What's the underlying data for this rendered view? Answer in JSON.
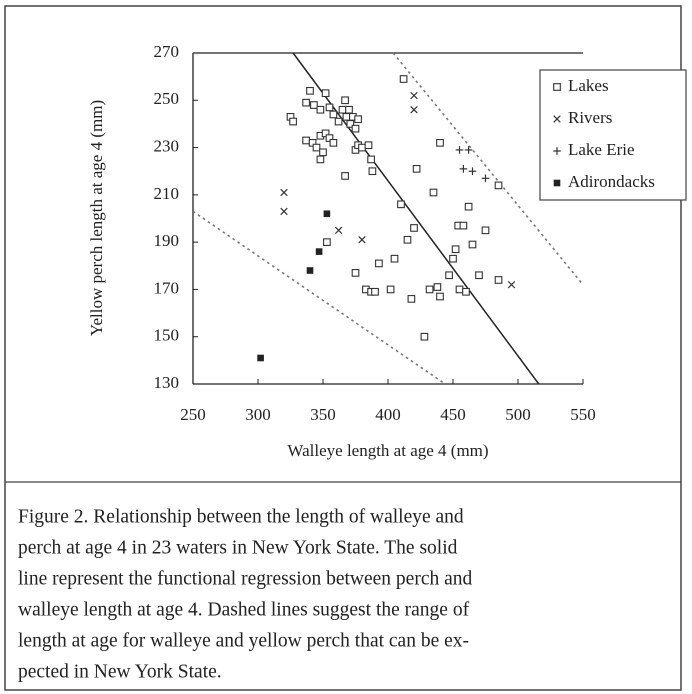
{
  "chart_data": {
    "type": "scatter",
    "xlabel": "Walleye length at age 4 (mm)",
    "ylabel": "Yellow perch length at age 4 (mm)",
    "xlim": [
      250,
      550
    ],
    "xticks": [
      250,
      300,
      350,
      400,
      450,
      500,
      550
    ],
    "ylim": [
      130,
      270
    ],
    "yticks": [
      130,
      150,
      170,
      190,
      210,
      230,
      250,
      270
    ],
    "legend": "upper right",
    "series": [
      {
        "name": "Lakes",
        "marker": "open-square",
        "color": "#333",
        "x": [
          325,
          327,
          337,
          340,
          343,
          348,
          352,
          355,
          358,
          362,
          365,
          367,
          368,
          371,
          373,
          375,
          377,
          370,
          337,
          342,
          345,
          348,
          350,
          352,
          355,
          348,
          358,
          375,
          377,
          380,
          385,
          387,
          388,
          367,
          410,
          420,
          415,
          405,
          393,
          375,
          383,
          387,
          390,
          402,
          418,
          432,
          440,
          438,
          447,
          450,
          452,
          454,
          458,
          462,
          465,
          470,
          455,
          460,
          475,
          485,
          485,
          435,
          422,
          440,
          412,
          428,
          353
        ],
        "y": [
          243,
          241,
          249,
          254,
          248,
          246,
          253,
          247,
          244,
          241,
          246,
          250,
          243,
          240,
          243,
          238,
          242,
          246,
          233,
          232,
          230,
          235,
          228,
          236,
          234,
          225,
          232,
          229,
          231,
          230,
          231,
          225,
          220,
          218,
          206,
          196,
          191,
          183,
          181,
          177,
          170,
          169,
          169,
          170,
          166,
          170,
          167,
          171,
          176,
          183,
          187,
          197,
          197,
          205,
          189,
          176,
          170,
          169,
          195,
          214,
          174,
          211,
          221,
          232,
          259,
          150,
          190
        ]
      },
      {
        "name": "Rivers",
        "marker": "x",
        "color": "#333",
        "x": [
          320,
          320,
          362,
          380,
          420,
          420,
          495
        ],
        "y": [
          211,
          203,
          195,
          191,
          252,
          246,
          172
        ]
      },
      {
        "name": "Lake Erie",
        "marker": "plus",
        "color": "#333",
        "x": [
          455,
          462,
          458,
          465,
          475
        ],
        "y": [
          229,
          229,
          221,
          220,
          217
        ]
      },
      {
        "name": "Adirondacks",
        "marker": "filled-square",
        "color": "#222",
        "x": [
          302,
          340,
          347,
          353
        ],
        "y": [
          141,
          178,
          186,
          202
        ]
      }
    ],
    "lines": [
      {
        "style": "solid",
        "x": [
          327,
          516
        ],
        "y": [
          270,
          130
        ]
      },
      {
        "style": "dashed",
        "x": [
          404,
          550
        ],
        "y": [
          270,
          172
        ]
      },
      {
        "style": "dashed",
        "x": [
          250,
          444
        ],
        "y": [
          203,
          130
        ]
      }
    ]
  },
  "caption": [
    "Figure 2. Relationship between the length of walleye and",
    "perch at age 4 in 23 waters in New York State. The solid",
    "line represent the functional regression between perch and",
    "walleye length at age 4. Dashed lines suggest the range of",
    "length at age for walleye and yellow perch that can be ex-",
    "pected in New York State."
  ]
}
